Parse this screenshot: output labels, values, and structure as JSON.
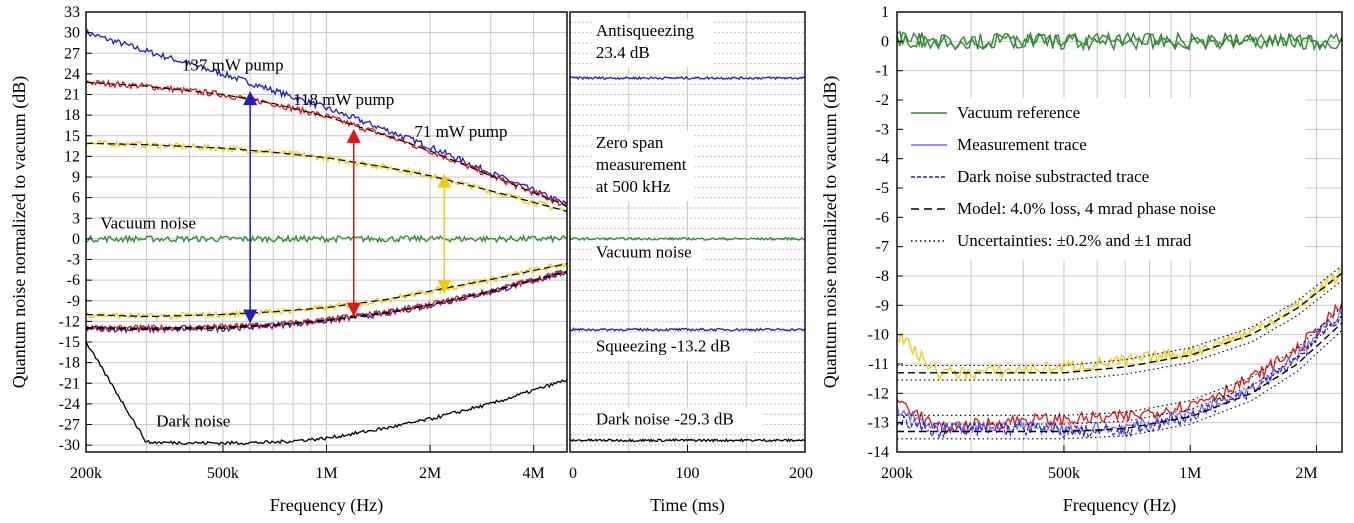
{
  "chart_data": [
    {
      "type": "line",
      "panel": "left",
      "xlabel": "Frequency (Hz)",
      "ylabel": "Quantum noise normalized to vacuum (dB)",
      "xscale": "log",
      "xlim": [
        200000,
        5000000
      ],
      "ylim": [
        -31,
        33
      ],
      "xticks": [
        200000,
        500000,
        1000000,
        2000000,
        4000000
      ],
      "xtick_labels": [
        "200k",
        "500k",
        "1M",
        "2M",
        "4M"
      ],
      "yticks": [
        -30,
        -27,
        -24,
        -21,
        -18,
        -15,
        -12,
        -9,
        -6,
        -3,
        0,
        3,
        6,
        9,
        12,
        15,
        18,
        21,
        24,
        27,
        30,
        33
      ],
      "ytick_labels": [
        "-30",
        "-27",
        "-24",
        "-21",
        "-18",
        "-15",
        "-12",
        "-9",
        "-6",
        "-3",
        "0",
        "3",
        "6",
        "9",
        "12",
        "15",
        "18",
        "21",
        "24",
        "27",
        "30",
        "33"
      ],
      "grid": true,
      "annotations": [
        {
          "text": "137 mW pump",
          "x": 380000,
          "y": 24.5
        },
        {
          "text": "118 mW pump",
          "x": 800000,
          "y": 19.5
        },
        {
          "text": "71 mW pump",
          "x": 1800000,
          "y": 14.8
        },
        {
          "text": "Vacuum noise",
          "x": 220000,
          "y": 1.5
        },
        {
          "text": "Dark noise",
          "x": 320000,
          "y": -27.3
        }
      ],
      "arrows": [
        {
          "x": 600000,
          "y1": 21.5,
          "y2": -12.3,
          "color": "#1f1fbf"
        },
        {
          "x": 1200000,
          "y1": 16.0,
          "y2": -11.3,
          "color": "#e01515"
        },
        {
          "x": 2200000,
          "y1": 9.5,
          "y2": -8.0,
          "color": "#f2cb0c"
        }
      ],
      "x": [
        200000,
        300000,
        500000,
        700000,
        1000000,
        1500000,
        2000000,
        3000000,
        5000000
      ],
      "series": [
        {
          "color": "#1f1fbf",
          "values": [
            30.0,
            27.3,
            24.0,
            21.6,
            19.0,
            15.8,
            13.4,
            9.6,
            5.0
          ]
        },
        {
          "color": "#e01515",
          "values": [
            22.8,
            22.2,
            21.0,
            19.7,
            17.8,
            15.0,
            12.8,
            9.2,
            4.8
          ]
        },
        {
          "color": "#f2cb0c",
          "values": [
            13.9,
            13.7,
            13.2,
            12.6,
            11.8,
            10.4,
            9.2,
            7.0,
            4.0
          ]
        },
        {
          "color": "#2e8b2e",
          "values": [
            0.0,
            0.0,
            0.0,
            0.0,
            0.0,
            0.0,
            0.0,
            0.0,
            0.0
          ]
        },
        {
          "color": "#1f1fbf",
          "values": [
            -13.0,
            -13.2,
            -13.0,
            -12.6,
            -11.9,
            -10.8,
            -9.6,
            -7.7,
            -4.8
          ]
        },
        {
          "color": "#e01515",
          "values": [
            -12.9,
            -13.0,
            -12.8,
            -12.5,
            -11.8,
            -10.7,
            -9.6,
            -7.6,
            -4.7
          ]
        },
        {
          "color": "#f2cb0c",
          "values": [
            -11.0,
            -11.3,
            -11.0,
            -10.6,
            -10.0,
            -8.8,
            -7.6,
            -5.9,
            -3.6
          ]
        },
        {
          "color": "#000000",
          "values": [
            -15.0,
            -29.6,
            -29.7,
            -29.6,
            -29.0,
            -27.5,
            -26.2,
            -24.0,
            -20.5
          ]
        }
      ]
    },
    {
      "type": "line",
      "panel": "middle",
      "xlabel": "Time (ms)",
      "xlim": [
        0,
        200
      ],
      "ylim": [
        -31,
        33
      ],
      "xticks": [
        0,
        100,
        200
      ],
      "xtick_labels": [
        "0",
        "100",
        "200"
      ],
      "grid": true,
      "annotations": [
        {
          "text": "Antisqueezing",
          "lines": [
            "Antisqueezing",
            "23.4 dB"
          ],
          "x": 22,
          "y": 29.5
        },
        {
          "text": "Zero span",
          "lines": [
            "Zero span",
            "measurement",
            "at 500 kHz"
          ],
          "x": 22,
          "y": 13.2
        },
        {
          "text": "Vacuum noise",
          "lines": [
            "Vacuum noise"
          ],
          "x": 22,
          "y": -2.7
        },
        {
          "text": "Squeezing -13.2 dB",
          "lines": [
            "Squeezing -13.2 dB"
          ],
          "x": 22,
          "y": -16.4
        },
        {
          "text": "Dark noise -29.3 dB",
          "lines": [
            "Dark noise -29.3 dB"
          ],
          "x": 22,
          "y": -27.0
        }
      ],
      "x": [
        0,
        200
      ],
      "series": [
        {
          "color": "#1f1fbf",
          "values": [
            23.4,
            23.4
          ]
        },
        {
          "color": "#2e8b2e",
          "values": [
            0.0,
            0.0
          ]
        },
        {
          "color": "#1f1fbf",
          "values": [
            -13.2,
            -13.2
          ]
        },
        {
          "color": "#000000",
          "values": [
            -29.3,
            -29.3
          ]
        }
      ]
    },
    {
      "type": "line",
      "panel": "right",
      "xlabel": "Frequency (Hz)",
      "ylabel": "Quantum noise normalized to vacuum (dB)",
      "xscale": "log",
      "xlim": [
        200000,
        2300000
      ],
      "ylim": [
        -14,
        1
      ],
      "xticks": [
        200000,
        500000,
        1000000,
        2000000
      ],
      "xtick_labels": [
        "200k",
        "500k",
        "1M",
        "2M"
      ],
      "yticks": [
        -14,
        -13,
        -12,
        -11,
        -10,
        -9,
        -8,
        -7,
        -6,
        -5,
        -4,
        -3,
        -2,
        -1,
        0,
        1
      ],
      "ytick_labels": [
        "-14",
        "-13",
        "-12",
        "-11",
        "-10",
        "-9",
        "-8",
        "-7",
        "-6",
        "-5",
        "-4",
        "-3",
        "-2",
        "-1",
        "0",
        "1"
      ],
      "grid": true,
      "legend_position": "left",
      "legend": [
        {
          "label": "Vacuum reference",
          "color": "#2e8b2e",
          "style": "solid"
        },
        {
          "label": "Measurement trace",
          "color": "#6b6bff",
          "style": "solid"
        },
        {
          "label": "Dark noise substracted trace",
          "color": "#1f1fbf",
          "style": "dashed"
        },
        {
          "label": "Model: 4.0% loss, 4 mrad phase noise",
          "color": "#000000",
          "style": "longdash"
        },
        {
          "label": "Uncertainties: ±0.2% and ±1 mrad",
          "color": "#000000",
          "style": "dotted"
        }
      ],
      "x": [
        200000,
        250000,
        300000,
        400000,
        500000,
        700000,
        1000000,
        1400000,
        1800000,
        2300000
      ],
      "series": [
        {
          "color": "#2e8b2e",
          "values": [
            0.1,
            0.0,
            0.0,
            0.0,
            0.0,
            0.0,
            0.0,
            0.0,
            0.0,
            0.0
          ]
        },
        {
          "color": "#f2cb0c",
          "values": [
            -10.0,
            -11.3,
            -11.3,
            -11.2,
            -11.1,
            -10.9,
            -10.6,
            -9.9,
            -9.0,
            -7.9
          ]
        },
        {
          "color": "#e01515",
          "values": [
            -12.2,
            -13.2,
            -13.1,
            -12.9,
            -12.9,
            -12.8,
            -12.4,
            -11.5,
            -10.5,
            -9.0
          ]
        },
        {
          "color": "#6b6bff",
          "values": [
            -12.6,
            -13.2,
            -13.2,
            -13.1,
            -13.2,
            -13.2,
            -12.7,
            -11.8,
            -10.7,
            -9.2
          ]
        },
        {
          "color": "#1f1fbf",
          "values": [
            -12.9,
            -13.3,
            -13.3,
            -13.2,
            -13.3,
            -13.3,
            -12.8,
            -11.9,
            -10.8,
            -9.3
          ]
        },
        {
          "color": "#000000",
          "values": [
            -13.3,
            -13.3,
            -13.3,
            -13.3,
            -13.3,
            -13.2,
            -12.8,
            -12.0,
            -11.0,
            -9.6
          ]
        },
        {
          "color": "#000000",
          "values": [
            -11.3,
            -11.3,
            -11.3,
            -11.3,
            -11.3,
            -11.1,
            -10.7,
            -10.0,
            -9.1,
            -7.9
          ]
        }
      ]
    }
  ]
}
